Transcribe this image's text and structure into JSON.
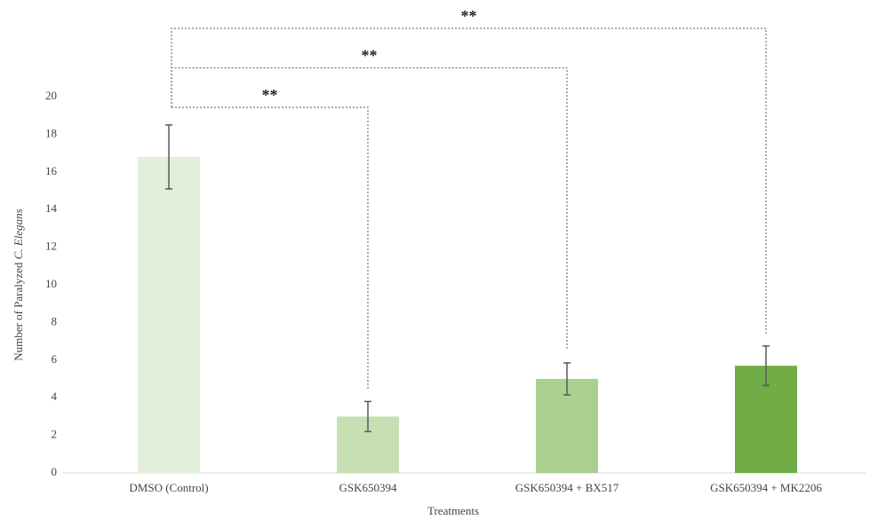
{
  "chart_data": {
    "type": "bar",
    "y_label": {
      "text": "Number of Paralyzed",
      "italic": "C. Elegans"
    },
    "x_label": "Treatments",
    "categories": [
      "DMSO (Control)",
      "GSK650394",
      "GSK650394 + BX517",
      "GSK650394 + MK2206"
    ],
    "values": [
      16.8,
      3.0,
      5.0,
      5.7
    ],
    "errors": [
      1.7,
      0.8,
      0.85,
      1.05
    ],
    "colors": [
      "#e2efda",
      "#c6e0b4",
      "#a9d08e",
      "#70ad47"
    ],
    "ylim": [
      0,
      20
    ],
    "yticks": [
      0,
      2,
      4,
      6,
      8,
      10,
      12,
      14,
      16,
      18,
      20
    ],
    "grid": false,
    "significance": [
      {
        "label": "**",
        "between": [
          "DMSO (Control)",
          "GSK650394"
        ]
      },
      {
        "label": "**",
        "between": [
          "DMSO (Control)",
          "GSK650394 + BX517"
        ]
      },
      {
        "label": "**",
        "between": [
          "DMSO (Control)",
          "GSK650394 + MK2206"
        ]
      }
    ]
  }
}
